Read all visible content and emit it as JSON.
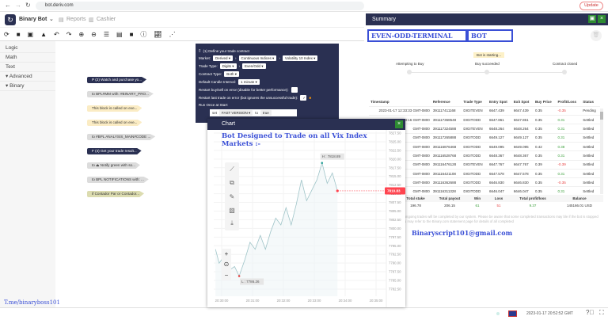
{
  "browser": {
    "url": "bot.deriv.com",
    "update_label": "Update"
  },
  "app": {
    "title": "Binary Bot",
    "reports": "Reports",
    "cashier": "Cashier"
  },
  "toolbar": [
    "reset-icon",
    "open-icon",
    "save-icon",
    "drive-icon",
    "undo-icon",
    "redo-icon",
    "zoom-in-icon",
    "zoom-out-icon",
    "arrange-icon",
    "summary-icon",
    "stop-icon",
    "info-icon",
    "chart-icon",
    "tradingview-icon"
  ],
  "sidebar": {
    "items": [
      "Logic",
      "Math",
      "Text",
      "▾ Advanced",
      "▾ Binary"
    ]
  },
  "blocks": [
    {
      "text": "P (2) Watch and purchase yo...",
      "style": "navy"
    },
    {
      "text": "to BPL#MM with: #BINARY_PRO...",
      "style": "gray"
    },
    {
      "text": "This block is called on eve...",
      "style": "yel"
    },
    {
      "text": "This block is called on eve...",
      "style": "yel"
    },
    {
      "text": "to #BPL ANALYSIS_MAIN#CODE ...",
      "style": "gray"
    },
    {
      "text": "F (4) Get your trade result...",
      "style": "navy"
    },
    {
      "text": "to ⏏ Notify green with so...",
      "style": "gray"
    },
    {
      "text": "to BPL NOTIFICATIONS with: ...",
      "style": "gray"
    },
    {
      "text": "if Contador Par or Contador...",
      "style": "olive"
    }
  ],
  "trade": {
    "title": "(1) Define your trade contract",
    "market_label": "Market:",
    "market": "Derived ▾",
    "submarket": "Continuous Indices ▾",
    "symbol": "Volatility 10 Index ▾",
    "trade_type_label": "Trade Type:",
    "trade_type": "Digits ▾",
    "trade_subtype": "Even/Odd ▾",
    "contract_type_label": "Contract Type:",
    "contract_type": "Both ▾",
    "candle_label": "Default Candle Interval:",
    "candle": "1 minute ▾",
    "restart_buysell": "Restart buy/sell on error    (disable for better performance):",
    "restart_last": "Restart last trade on error    (bot ignores the unsuccessful trade):",
    "run_once": "Run Once at Start:",
    "set_label": "set",
    "set_var": "FAST VERSION ▾",
    "to_label": "to",
    "set_value": "true"
  },
  "chart_window": {
    "title": "Chart",
    "close": "×",
    "banner": "Bot Designed to Trade on all Vix Index Markets :-",
    "high_label": "H : 7818.89",
    "low_label": "L : 7786.26",
    "current_label": "7810.83"
  },
  "chart_data": {
    "type": "line",
    "symbol": "Volatility 10 Index",
    "ylim": [
      7781,
      7829
    ],
    "y_ticks": [
      "7827.50",
      "7825.00",
      "7822.50",
      "7820.00",
      "7817.50",
      "7815.00",
      "7812.50",
      "7810.00",
      "7807.50",
      "7805.00",
      "7802.50",
      "7800.00",
      "7797.50",
      "7795.00",
      "7792.50",
      "7790.00",
      "7787.50",
      "7785.00",
      "7782.50"
    ],
    "x_ticks": [
      "20:30:00",
      "20:31:00",
      "20:32:00",
      "20:33:00",
      "20:34:00",
      "20:35:00"
    ],
    "points": [
      [
        "20:29:48",
        7794
      ],
      [
        "20:29:55",
        7790
      ],
      [
        "20:30:05",
        7792
      ],
      [
        "20:30:15",
        7788
      ],
      [
        "20:30:25",
        7789
      ],
      [
        "20:30:34",
        7786.26
      ],
      [
        "20:30:45",
        7791
      ],
      [
        "20:30:55",
        7796
      ],
      [
        "20:31:05",
        7794
      ],
      [
        "20:31:15",
        7798
      ],
      [
        "20:31:25",
        7794
      ],
      [
        "20:31:35",
        7799
      ],
      [
        "20:31:45",
        7803
      ],
      [
        "20:31:55",
        7801
      ],
      [
        "20:32:05",
        7806
      ],
      [
        "20:32:15",
        7801
      ],
      [
        "20:32:25",
        7807
      ],
      [
        "20:32:35",
        7814
      ],
      [
        "20:32:45",
        7808
      ],
      [
        "20:32:55",
        7811
      ],
      [
        "20:33:05",
        7814
      ],
      [
        "20:33:15",
        7818.89
      ],
      [
        "20:33:25",
        7813
      ],
      [
        "20:33:35",
        7816
      ],
      [
        "20:33:45",
        7810.83
      ]
    ],
    "high": 7818.89,
    "low": 7786.26,
    "last": 7810.83,
    "line_color": "#9fc4c8",
    "last_color": "#ff444f"
  },
  "summary": {
    "title": "Summary",
    "brand_left": "EVEN-ODD-TERMINAL",
    "brand_right": "BOT",
    "status": "Bot is starting...",
    "steps": [
      "Attempting to Buy",
      "Buy succeeded",
      "Contract closed"
    ],
    "columns": [
      "Timestamp",
      "Reference",
      "Trade Type",
      "Entry Spot",
      "Exit Spot",
      "Buy Price",
      "Profit/Loss",
      "Status"
    ],
    "rows": [
      [
        "2023-01-17 12:33:33 GMT-0800",
        "391117411168",
        "DIGITEVEN",
        "6647.439",
        "6647.439",
        "0.35",
        "-0.35",
        "Pending"
      ],
      [
        "2023-01-17 12:33:16 GMT-0800",
        "391117368548",
        "DIGITODD",
        "6647.861",
        "6647.861",
        "0.35",
        "0.31",
        "Settled"
      ],
      [
        "GMT-0800",
        "391117324588",
        "DIGITEVEN",
        "6648.264",
        "6648.264",
        "0.35",
        "0.31",
        "Settled"
      ],
      [
        "GMT-0800",
        "391117265888",
        "DIGITODD",
        "6649.127",
        "6649.127",
        "0.35",
        "0.31",
        "Settled"
      ],
      [
        "GMT-0800",
        "391116876468",
        "DIGITODD",
        "6649.095",
        "6649.095",
        "0.42",
        "0.38",
        "Settled"
      ],
      [
        "GMT-0800",
        "391116528768",
        "DIGITODD",
        "6648.367",
        "6648.367",
        "0.35",
        "0.31",
        "Settled"
      ],
      [
        "GMT-0800",
        "391116476128",
        "DIGITEVEN",
        "6647.767",
        "6647.767",
        "0.39",
        "-0.39",
        "Settled"
      ],
      [
        "GMT-0800",
        "391116421108",
        "DIGITODD",
        "6647.578",
        "6647.578",
        "0.35",
        "0.31",
        "Settled"
      ],
      [
        "GMT-0800",
        "391116362688",
        "DIGITODD",
        "6646.830",
        "6646.830",
        "0.35",
        "-0.35",
        "Settled"
      ],
      [
        "GMT-0800",
        "391116311328",
        "DIGITODD",
        "6646.047",
        "6646.047",
        "0.35",
        "0.31",
        "Settled"
      ],
      [
        "GMT-0800",
        "391116219748",
        "DIGITEVEN",
        "6646.764",
        "6646.764",
        "0.39",
        "0.35",
        "Settled"
      ]
    ],
    "totals_columns": [
      "No. of runs",
      "Total stake",
      "Total payout",
      "Win",
      "Loss",
      "Total profit/loss",
      "Balance"
    ],
    "totals": [
      "112",
      "196.78",
      "206.15",
      "61",
      "51",
      "9.37",
      "145166.01 USD"
    ],
    "disclaimer": "end further trades. Any ongoing trades will be completed by our system. Please be aware that some completed transactions may ble if the bot is stopped while placing trades. You may refer to the Binary.com statement page for details of all completed",
    "email": "Binaryscript101@gmail.com"
  },
  "footer": {
    "telegram": "T.me/binaryboss101",
    "datetime": "2023-01-17 20:52:52 GMT"
  }
}
